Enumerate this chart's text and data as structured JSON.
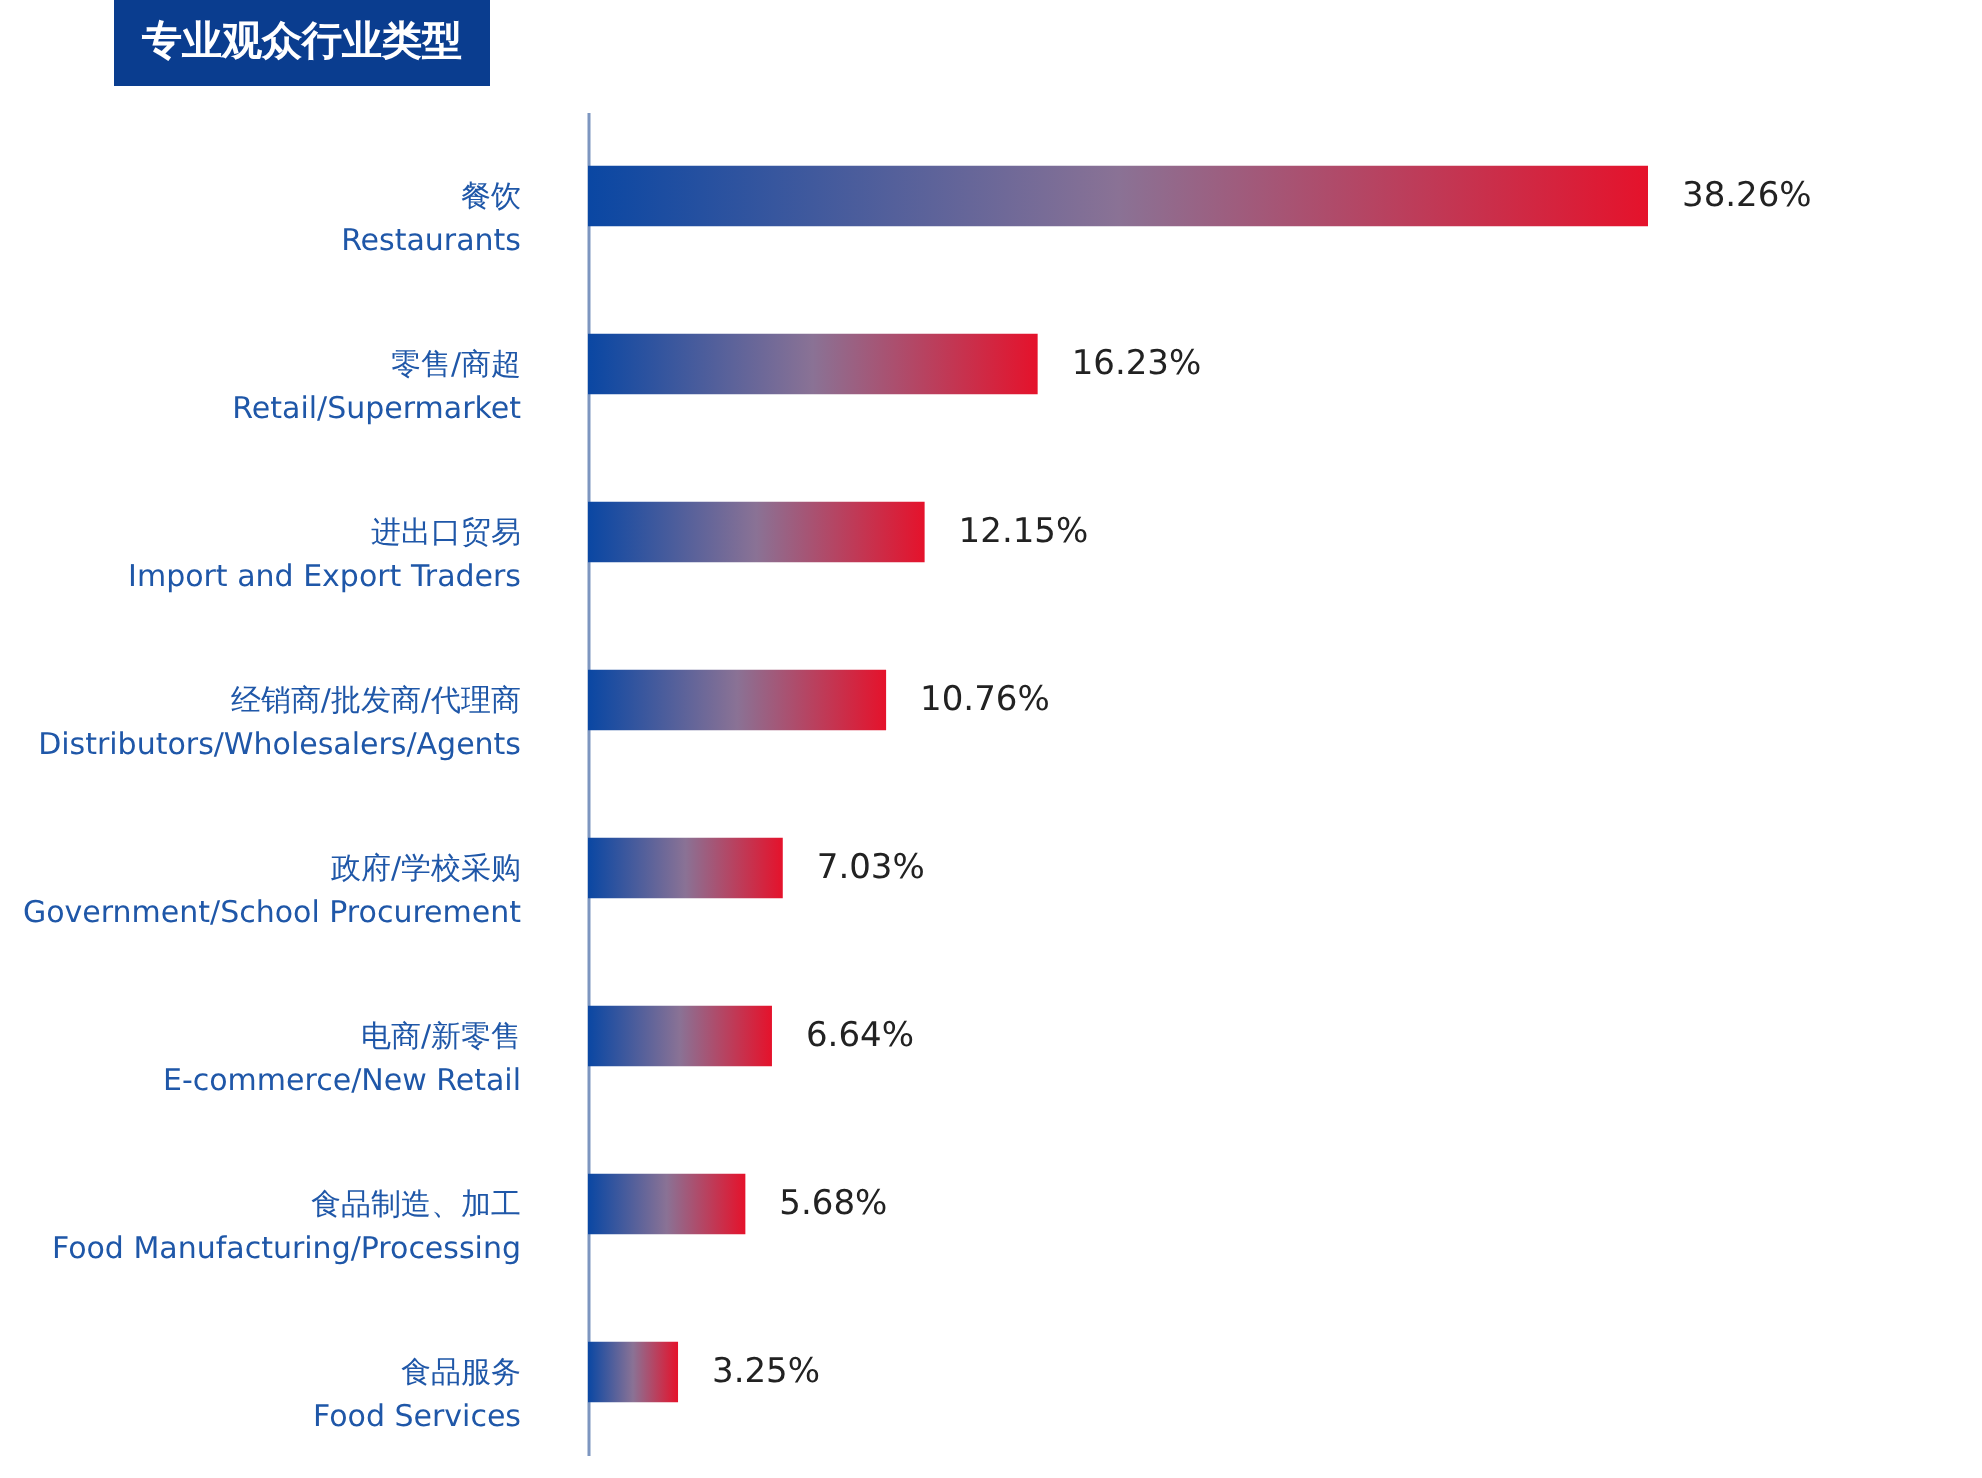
{
  "chart_data": {
    "type": "bar",
    "orientation": "horizontal",
    "title": "专业观众行业类型",
    "categories": [
      "餐饮\nRestaurants",
      "零售/商超\nRetail/Supermarket",
      "进出口贸易\nImport and Export Traders",
      "经销商/批发商/代理商\nDistributors/Wholesalers/Agents",
      "政府/学校采购\nGovernment/School Procurement",
      "电商/新零售\nE-commerce/New Retail",
      "食品制造、加工\nFood Manufacturing/Processing",
      "食品服务\nFood Services"
    ],
    "series": [
      {
        "color": "#0a47a3",
        "values": [
          38.26,
          16.23,
          12.15,
          10.76,
          7.03,
          6.64,
          5.68,
          3.25
        ],
        "value_labels": [
          "38.26%",
          "16.23%",
          "12.15%",
          "10.76%",
          "7.03%",
          "6.64%",
          "5.68%",
          "3.25%"
        ]
      }
    ]
  }
}
